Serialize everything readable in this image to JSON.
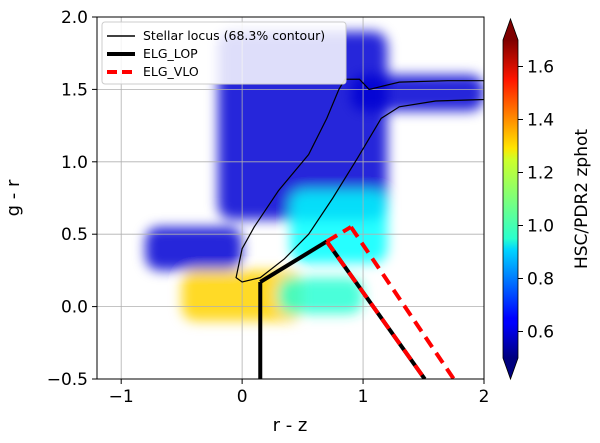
{
  "chart_data": {
    "type": "scatter",
    "subtype": "hexbin color-color diagram",
    "xlabel": "r - z",
    "ylabel": "g - r",
    "xlim": [
      -1.2,
      2.0
    ],
    "ylim": [
      -0.5,
      2.0
    ],
    "x_ticks": [
      -1,
      0,
      1,
      2
    ],
    "x_tick_labels": [
      "−1",
      "0",
      "1",
      "2"
    ],
    "y_ticks": [
      -0.5,
      0.0,
      0.5,
      1.0,
      1.5,
      2.0
    ],
    "y_tick_labels": [
      "−0.5",
      "0.0",
      "0.5",
      "1.0",
      "1.5",
      "2.0"
    ],
    "grid": true,
    "legend_position": "top-left",
    "legend": [
      {
        "label": "Stellar locus (68.3% contour)",
        "style": "solid",
        "color": "#000000"
      },
      {
        "label": "ELG_LOP",
        "style": "solid-thick",
        "color": "#000000"
      },
      {
        "label": "ELG_VLO",
        "style": "dashed-thick",
        "color": "#ff0000"
      }
    ],
    "colorbar": {
      "label": "HSC/PDR2 zphot",
      "colormap": "jet",
      "range": [
        0.5,
        1.7
      ],
      "ticks": [
        0.6,
        0.8,
        1.0,
        1.2,
        1.4,
        1.6
      ],
      "tick_labels": [
        "0.6",
        "0.8",
        "1.0",
        "1.2",
        "1.4",
        "1.6"
      ],
      "extend": "both"
    },
    "series": [
      {
        "name": "ELG_LOP",
        "style": "solid",
        "color": "#000000",
        "segments": [
          [
            [
              0.15,
              -0.5
            ],
            [
              0.15,
              0.17
            ]
          ],
          [
            [
              0.15,
              0.17
            ],
            [
              0.7,
              0.45
            ]
          ],
          [
            [
              0.7,
              0.45
            ],
            [
              1.51,
              -0.5
            ]
          ]
        ]
      },
      {
        "name": "ELG_VLO",
        "style": "dashed",
        "color": "#ff0000",
        "segments": [
          [
            [
              0.7,
              0.45
            ],
            [
              0.9,
              0.55
            ]
          ],
          [
            [
              0.9,
              0.55
            ],
            [
              1.75,
              -0.5
            ]
          ],
          [
            [
              0.7,
              0.45
            ],
            [
              1.51,
              -0.5
            ]
          ]
        ]
      },
      {
        "name": "Stellar locus (68.3% contour)",
        "style": "thin",
        "color": "#000000",
        "contour": [
          [
            -0.05,
            0.2
          ],
          [
            0.0,
            0.4
          ],
          [
            0.1,
            0.55
          ],
          [
            0.3,
            0.8
          ],
          [
            0.55,
            1.05
          ],
          [
            0.7,
            1.3
          ],
          [
            0.8,
            1.5
          ],
          [
            0.85,
            1.57
          ],
          [
            0.97,
            1.57
          ],
          [
            1.05,
            1.5
          ],
          [
            1.3,
            1.55
          ],
          [
            1.7,
            1.56
          ],
          [
            2.0,
            1.56
          ],
          [
            2.0,
            1.43
          ],
          [
            1.6,
            1.42
          ],
          [
            1.3,
            1.38
          ],
          [
            1.15,
            1.3
          ],
          [
            0.95,
            1.02
          ],
          [
            0.75,
            0.75
          ],
          [
            0.55,
            0.5
          ],
          [
            0.35,
            0.33
          ],
          [
            0.15,
            0.2
          ],
          [
            0.0,
            0.17
          ],
          [
            -0.05,
            0.2
          ]
        ]
      }
    ],
    "density_regions": [
      {
        "x": [
          -0.8,
          0.0
        ],
        "y": [
          0.25,
          0.55
        ],
        "zphot": 0.6
      },
      {
        "x": [
          -0.2,
          1.2
        ],
        "y": [
          0.6,
          1.9
        ],
        "zphot": 0.6
      },
      {
        "x": [
          0.9,
          2.0
        ],
        "y": [
          1.35,
          1.6
        ],
        "zphot": 0.6
      },
      {
        "x": [
          0.4,
          1.2
        ],
        "y": [
          0.3,
          0.8
        ],
        "zphot": 0.95
      },
      {
        "x": [
          -0.5,
          0.5
        ],
        "y": [
          -0.1,
          0.25
        ],
        "zphot": 1.3
      },
      {
        "x": [
          0.3,
          1.0
        ],
        "y": [
          -0.05,
          0.2
        ],
        "zphot": 1.0
      }
    ]
  }
}
